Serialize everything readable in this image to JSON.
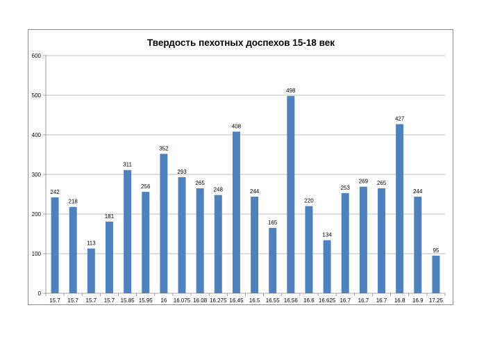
{
  "chart_data": {
    "type": "bar",
    "title": "Твердость пехотных доспехов 15-18 век",
    "xlabel": "",
    "ylabel": "",
    "categories": [
      "15.7",
      "15.7",
      "15.7",
      "15.7",
      "15.85",
      "15.95",
      "16",
      "16.075",
      "16.08",
      "16.275",
      "16.45",
      "16.5",
      "16.55",
      "16.56",
      "16.6",
      "16.625",
      "16.7",
      "16.7",
      "16.7",
      "16.8",
      "16.9",
      "17.25"
    ],
    "values": [
      242,
      218,
      113,
      181,
      311,
      256,
      352,
      293,
      265,
      248,
      408,
      244,
      165,
      498,
      220,
      134,
      253,
      269,
      265,
      427,
      244,
      95
    ],
    "ylim": [
      0,
      600
    ],
    "yticks": [
      0,
      100,
      200,
      300,
      400,
      500,
      600
    ],
    "grid": true,
    "legend": "none",
    "bar_color": "#4f81bd",
    "grid_color": "#a6a6a6"
  }
}
